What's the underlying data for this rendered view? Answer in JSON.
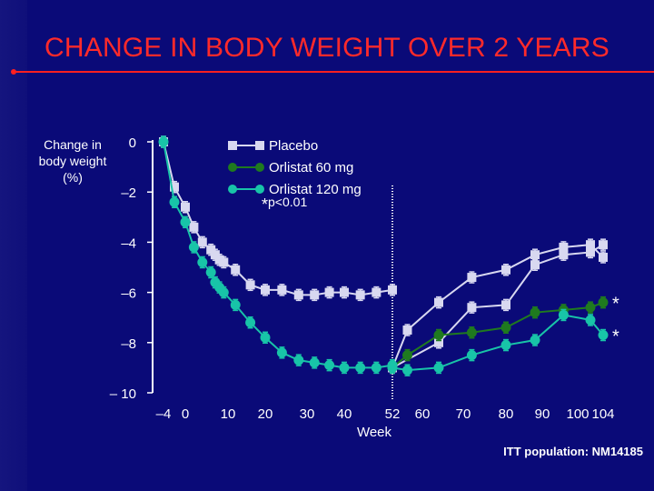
{
  "title": "CHANGE IN BODY WEIGHT OVER 2 YEARS",
  "footer": "ITT population: NM14185",
  "p_note": {
    "star": "*",
    "text": "p<0.01"
  },
  "colors": {
    "background": "#0a0a78",
    "title": "#ff2a2a",
    "placebo": "#d8d8f0",
    "orlistat60": "#1f7a1f",
    "orlistat120": "#18c4a8",
    "axis": "#ffffff",
    "divider": "#ffffff"
  },
  "chart_data": {
    "type": "line",
    "ylabel": "Change in body weight (%)",
    "xlabel": "Week",
    "ylim": [
      -10,
      0
    ],
    "y_ticks": [
      0,
      -2,
      -4,
      -6,
      -8,
      -10
    ],
    "y_tick_labels": [
      "0",
      "–2",
      "–4",
      "–6",
      "–8",
      "– 10"
    ],
    "x_ticks": [
      -4,
      0,
      10,
      20,
      30,
      40,
      52,
      60,
      70,
      80,
      90,
      100,
      104
    ],
    "x_tick_labels": [
      "–4",
      "0",
      "10",
      "20",
      "30",
      "40",
      "52",
      "60",
      "70",
      "80",
      "90",
      "100",
      "104"
    ],
    "divider_week": 52,
    "legend": [
      "Placebo",
      "Orlistat 60 mg",
      "Orlistat 120 mg"
    ],
    "annotations": [
      "*",
      "*"
    ],
    "series": [
      {
        "name": "Placebo",
        "marker": "square",
        "x": [
          -4,
          -2,
          0,
          2,
          4,
          6,
          7,
          8,
          9,
          12,
          16,
          20,
          24,
          28,
          32,
          36,
          40,
          44,
          48,
          52
        ],
        "y": [
          0,
          -1.8,
          -2.6,
          -3.4,
          -4.0,
          -4.3,
          -4.5,
          -4.7,
          -4.8,
          -5.1,
          -5.7,
          -5.9,
          -5.9,
          -6.1,
          -6.1,
          -6.0,
          -6.0,
          -6.1,
          -6.0,
          -5.9
        ]
      },
      {
        "name": "Placebo",
        "marker": "square",
        "x": [
          52,
          56,
          64,
          72,
          80,
          88,
          96,
          102,
          104
        ],
        "y": [
          -9.0,
          -7.5,
          -6.4,
          -5.4,
          -5.1,
          -4.5,
          -4.2,
          -4.1,
          -4.6
        ]
      },
      {
        "name": "Placebo",
        "marker": "square",
        "x": [
          52,
          64,
          72,
          80,
          88,
          96,
          102,
          104
        ],
        "y": [
          -9.0,
          -8.0,
          -6.6,
          -6.5,
          -4.9,
          -4.5,
          -4.4,
          -4.1
        ]
      },
      {
        "name": "Orlistat 60 mg",
        "marker": "circle",
        "x": [
          52,
          56,
          64,
          72,
          80,
          88,
          96,
          102,
          104
        ],
        "y": [
          -9.0,
          -8.5,
          -7.7,
          -7.6,
          -7.4,
          -6.8,
          -6.7,
          -6.6,
          -6.4
        ]
      },
      {
        "name": "Orlistat 120 mg",
        "marker": "circle",
        "x": [
          -4,
          -2,
          0,
          2,
          4,
          6,
          7,
          8,
          9,
          12,
          16,
          20,
          24,
          28,
          32,
          36,
          40,
          44,
          48,
          52
        ],
        "y": [
          0,
          -2.4,
          -3.2,
          -4.2,
          -4.8,
          -5.2,
          -5.6,
          -5.8,
          -6.0,
          -6.5,
          -7.2,
          -7.8,
          -8.4,
          -8.7,
          -8.8,
          -8.9,
          -9.0,
          -9.0,
          -9.0,
          -8.9
        ]
      },
      {
        "name": "Orlistat 120 mg",
        "marker": "circle",
        "x": [
          52,
          56,
          64,
          72,
          80,
          88,
          96,
          102,
          104
        ],
        "y": [
          -9.0,
          -9.1,
          -9.0,
          -8.5,
          -8.1,
          -7.9,
          -6.9,
          -7.1,
          -7.7
        ]
      }
    ]
  }
}
